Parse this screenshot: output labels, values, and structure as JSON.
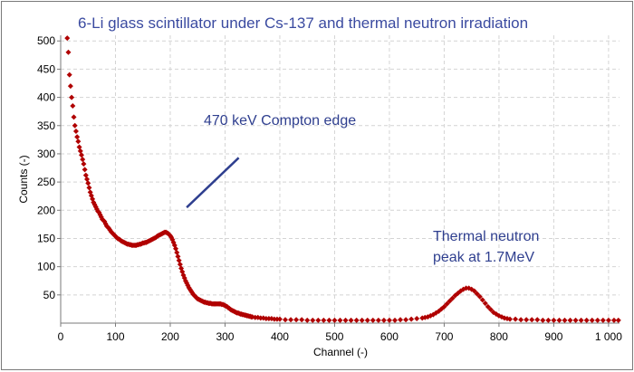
{
  "chart_data": {
    "type": "scatter",
    "title": "6-Li glass scintillator under Cs-137 and thermal neutron irradiation",
    "xlabel": "Channel (-)",
    "ylabel": "Counts (-)",
    "xlim": [
      0,
      1020
    ],
    "ylim": [
      0,
      510
    ],
    "x_ticks": [
      0,
      100,
      200,
      300,
      400,
      500,
      600,
      700,
      800,
      900,
      1000
    ],
    "x_tick_labels": [
      "0",
      "100",
      "200",
      "300",
      "400",
      "500",
      "600",
      "700",
      "800",
      "900",
      "1 000"
    ],
    "y_ticks": [
      50,
      100,
      150,
      200,
      250,
      300,
      350,
      400,
      450,
      500
    ],
    "grid": true,
    "marker_color": "#b00000",
    "annotation_line_color": "#2f3f8f",
    "series": [
      {
        "points": [
          [
            12,
            505
          ],
          [
            14,
            480
          ],
          [
            16,
            440
          ],
          [
            18,
            420
          ],
          [
            20,
            400
          ],
          [
            22,
            385
          ],
          [
            24,
            365
          ],
          [
            26,
            350
          ],
          [
            28,
            340
          ],
          [
            30,
            330
          ],
          [
            32,
            322
          ],
          [
            34,
            312
          ],
          [
            36,
            305
          ],
          [
            38,
            298
          ],
          [
            40,
            290
          ],
          [
            42,
            282
          ],
          [
            44,
            272
          ],
          [
            46,
            262
          ],
          [
            48,
            255
          ],
          [
            50,
            248
          ],
          [
            52,
            240
          ],
          [
            54,
            232
          ],
          [
            56,
            226
          ],
          [
            58,
            220
          ],
          [
            60,
            214
          ],
          [
            62,
            210
          ],
          [
            64,
            206
          ],
          [
            66,
            202
          ],
          [
            68,
            198
          ],
          [
            70,
            196
          ],
          [
            72,
            192
          ],
          [
            74,
            188
          ],
          [
            76,
            184
          ],
          [
            78,
            182
          ],
          [
            80,
            180
          ],
          [
            82,
            176
          ],
          [
            84,
            172
          ],
          [
            86,
            170
          ],
          [
            88,
            168
          ],
          [
            90,
            165
          ],
          [
            92,
            162
          ],
          [
            94,
            160
          ],
          [
            96,
            158
          ],
          [
            98,
            156
          ],
          [
            100,
            154
          ],
          [
            102,
            152
          ],
          [
            104,
            150
          ],
          [
            106,
            149
          ],
          [
            108,
            148
          ],
          [
            110,
            146
          ],
          [
            112,
            145
          ],
          [
            114,
            144
          ],
          [
            116,
            143
          ],
          [
            118,
            142
          ],
          [
            120,
            141
          ],
          [
            122,
            140
          ],
          [
            124,
            140
          ],
          [
            126,
            139
          ],
          [
            128,
            139
          ],
          [
            130,
            138
          ],
          [
            132,
            138
          ],
          [
            134,
            138
          ],
          [
            136,
            138
          ],
          [
            138,
            138
          ],
          [
            140,
            139
          ],
          [
            142,
            139
          ],
          [
            144,
            140
          ],
          [
            146,
            140
          ],
          [
            148,
            141
          ],
          [
            150,
            142
          ],
          [
            152,
            142
          ],
          [
            154,
            143
          ],
          [
            156,
            143
          ],
          [
            158,
            144
          ],
          [
            160,
            145
          ],
          [
            162,
            146
          ],
          [
            164,
            147
          ],
          [
            166,
            148
          ],
          [
            168,
            149
          ],
          [
            170,
            150
          ],
          [
            172,
            151
          ],
          [
            174,
            152
          ],
          [
            176,
            154
          ],
          [
            178,
            155
          ],
          [
            180,
            156
          ],
          [
            182,
            157
          ],
          [
            184,
            158
          ],
          [
            186,
            159
          ],
          [
            188,
            160
          ],
          [
            190,
            161
          ],
          [
            192,
            161
          ],
          [
            194,
            160
          ],
          [
            196,
            159
          ],
          [
            198,
            157
          ],
          [
            200,
            155
          ],
          [
            202,
            152
          ],
          [
            204,
            148
          ],
          [
            206,
            143
          ],
          [
            208,
            138
          ],
          [
            210,
            132
          ],
          [
            212,
            125
          ],
          [
            214,
            118
          ],
          [
            216,
            111
          ],
          [
            218,
            104
          ],
          [
            220,
            97
          ],
          [
            222,
            91
          ],
          [
            224,
            85
          ],
          [
            226,
            80
          ],
          [
            228,
            75
          ],
          [
            230,
            71
          ],
          [
            232,
            67
          ],
          [
            234,
            63
          ],
          [
            236,
            60
          ],
          [
            238,
            57
          ],
          [
            240,
            54
          ],
          [
            242,
            51
          ],
          [
            244,
            49
          ],
          [
            246,
            47
          ],
          [
            248,
            45
          ],
          [
            250,
            43
          ],
          [
            252,
            42
          ],
          [
            254,
            41
          ],
          [
            256,
            40
          ],
          [
            258,
            39
          ],
          [
            260,
            38
          ],
          [
            262,
            37
          ],
          [
            264,
            37
          ],
          [
            266,
            36
          ],
          [
            268,
            36
          ],
          [
            270,
            35
          ],
          [
            272,
            35
          ],
          [
            274,
            35
          ],
          [
            276,
            34
          ],
          [
            278,
            34
          ],
          [
            280,
            34
          ],
          [
            282,
            34
          ],
          [
            284,
            34
          ],
          [
            286,
            34
          ],
          [
            288,
            34
          ],
          [
            290,
            34
          ],
          [
            292,
            34
          ],
          [
            294,
            33
          ],
          [
            296,
            33
          ],
          [
            298,
            32
          ],
          [
            300,
            31
          ],
          [
            302,
            30
          ],
          [
            304,
            29
          ],
          [
            306,
            27
          ],
          [
            308,
            26
          ],
          [
            310,
            24
          ],
          [
            312,
            23
          ],
          [
            314,
            22
          ],
          [
            316,
            21
          ],
          [
            318,
            20
          ],
          [
            320,
            19
          ],
          [
            322,
            18
          ],
          [
            324,
            18
          ],
          [
            326,
            17
          ],
          [
            328,
            16
          ],
          [
            330,
            16
          ],
          [
            332,
            15
          ],
          [
            334,
            15
          ],
          [
            336,
            14
          ],
          [
            338,
            14
          ],
          [
            340,
            13
          ],
          [
            342,
            13
          ],
          [
            344,
            12
          ],
          [
            346,
            12
          ],
          [
            348,
            11
          ],
          [
            350,
            11
          ],
          [
            355,
            10
          ],
          [
            360,
            10
          ],
          [
            365,
            9
          ],
          [
            370,
            9
          ],
          [
            375,
            8
          ],
          [
            380,
            8
          ],
          [
            385,
            8
          ],
          [
            390,
            7
          ],
          [
            395,
            7
          ],
          [
            400,
            7
          ],
          [
            410,
            6
          ],
          [
            420,
            6
          ],
          [
            430,
            6
          ],
          [
            440,
            6
          ],
          [
            450,
            5
          ],
          [
            460,
            5
          ],
          [
            470,
            5
          ],
          [
            480,
            5
          ],
          [
            490,
            5
          ],
          [
            500,
            5
          ],
          [
            510,
            5
          ],
          [
            520,
            5
          ],
          [
            530,
            5
          ],
          [
            540,
            5
          ],
          [
            550,
            5
          ],
          [
            560,
            5
          ],
          [
            570,
            5
          ],
          [
            580,
            5
          ],
          [
            590,
            5
          ],
          [
            600,
            5
          ],
          [
            610,
            5
          ],
          [
            620,
            6
          ],
          [
            630,
            6
          ],
          [
            640,
            7
          ],
          [
            650,
            8
          ],
          [
            660,
            9
          ],
          [
            665,
            10
          ],
          [
            670,
            11
          ],
          [
            675,
            13
          ],
          [
            680,
            15
          ],
          [
            685,
            18
          ],
          [
            690,
            21
          ],
          [
            695,
            25
          ],
          [
            700,
            29
          ],
          [
            705,
            34
          ],
          [
            710,
            39
          ],
          [
            715,
            44
          ],
          [
            720,
            49
          ],
          [
            725,
            53
          ],
          [
            730,
            57
          ],
          [
            735,
            60
          ],
          [
            740,
            62
          ],
          [
            745,
            62
          ],
          [
            750,
            60
          ],
          [
            755,
            57
          ],
          [
            760,
            52
          ],
          [
            765,
            47
          ],
          [
            770,
            41
          ],
          [
            775,
            35
          ],
          [
            780,
            29
          ],
          [
            785,
            24
          ],
          [
            790,
            19
          ],
          [
            795,
            16
          ],
          [
            800,
            13
          ],
          [
            805,
            11
          ],
          [
            810,
            9
          ],
          [
            815,
            8
          ],
          [
            820,
            7
          ],
          [
            830,
            7
          ],
          [
            840,
            6
          ],
          [
            850,
            6
          ],
          [
            860,
            6
          ],
          [
            870,
            6
          ],
          [
            880,
            5
          ],
          [
            890,
            5
          ],
          [
            900,
            5
          ],
          [
            910,
            5
          ],
          [
            920,
            5
          ],
          [
            930,
            5
          ],
          [
            940,
            5
          ],
          [
            950,
            5
          ],
          [
            960,
            5
          ],
          [
            970,
            5
          ],
          [
            980,
            5
          ],
          [
            990,
            5
          ],
          [
            1000,
            5
          ],
          [
            1010,
            5
          ],
          [
            1018,
            5
          ]
        ]
      }
    ],
    "annotations": [
      {
        "text": "470 keV Compton edge",
        "line_from": [
          230,
          205
        ],
        "line_to": [
          325,
          293
        ]
      },
      {
        "lines": [
          "Thermal neutron",
          "peak at 1.7MeV"
        ]
      }
    ]
  }
}
